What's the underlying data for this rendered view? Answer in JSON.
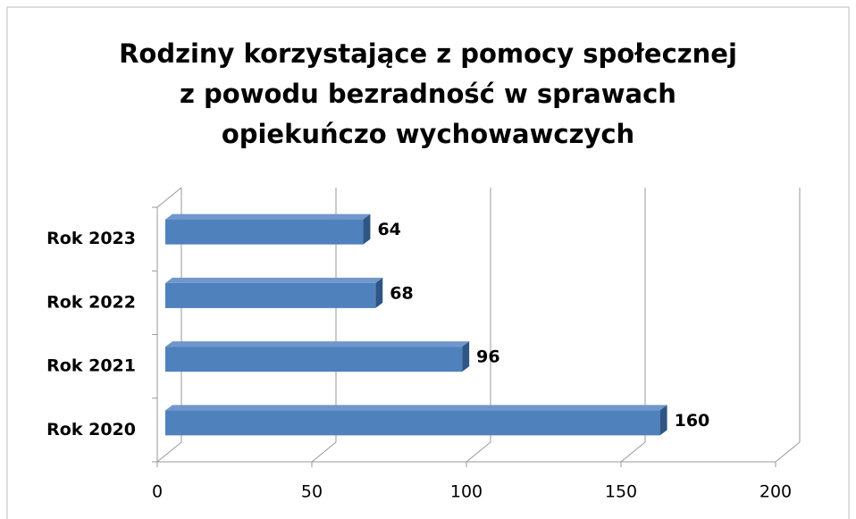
{
  "chart_data": {
    "type": "bar3d_horizontal",
    "title": "Rodziny korzystające z pomocy społecznej z powodu bezradność w sprawach opiekuńczo wychowawczych",
    "categories": [
      "Rok 2020",
      "Rok 2021",
      "Rok 2022",
      "Rok 2023"
    ],
    "values": [
      160,
      96,
      68,
      64
    ],
    "color": "#4f81bd",
    "xlim": [
      0,
      200
    ],
    "xticks": [
      0,
      50,
      100,
      150,
      200
    ],
    "grid": true
  }
}
